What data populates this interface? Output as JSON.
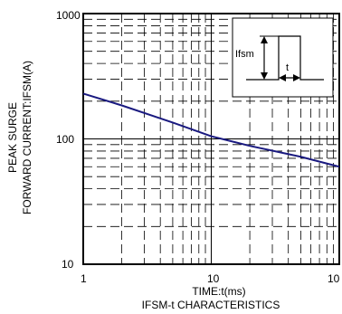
{
  "chart_data": {
    "type": "line",
    "title": "",
    "caption": "IFSM-t CHARACTERISTICS",
    "xlabel": "TIME:t(ms)",
    "ylabel_line1": "PEAK SURGE",
    "ylabel_line2": "FORWARD CURRENT:IFSM(A)",
    "x_scale": "log",
    "y_scale": "log",
    "xlim": [
      1,
      100
    ],
    "ylim": [
      10,
      1000
    ],
    "x_tick_labels": [
      "1",
      "10",
      "10"
    ],
    "y_tick_labels": [
      "1000",
      "100",
      "10"
    ],
    "grid": true,
    "legend": "none",
    "series": [
      {
        "x": [
          1,
          2,
          5,
          10,
          20,
          50,
          100
        ],
        "y": [
          230,
          185,
          135,
          105,
          88,
          72,
          60
        ]
      }
    ],
    "inset": {
      "ifsm_label": "Ifsm",
      "t_label": "t"
    },
    "colors": {
      "curve": "#1a1a80",
      "axis": "#000000"
    }
  }
}
